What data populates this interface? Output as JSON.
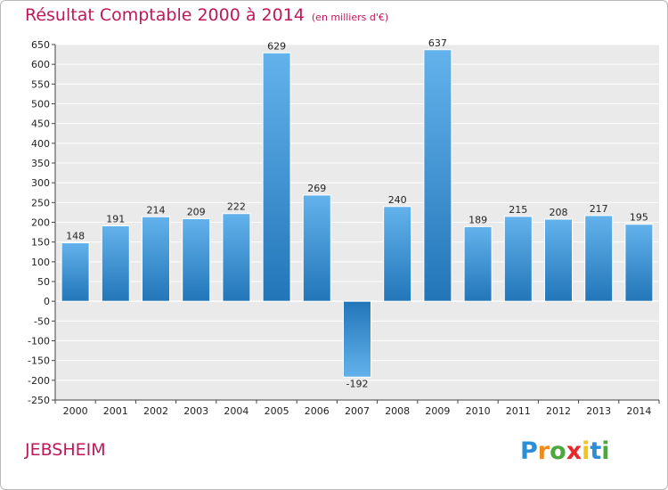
{
  "title": "Résultat Comptable 2000 à 2014",
  "subtitle": "(en milliers d'€)",
  "commune": "JEBSHEIM",
  "brand": "Proxiti",
  "colors": {
    "title": "#c0175a",
    "bar_light": "#63b2ec",
    "bar_dark": "#2276b8",
    "plot_bg": "#eaeaea",
    "grid": "#ffffff"
  },
  "chart_data": {
    "type": "bar",
    "title": "Résultat Comptable 2000 à 2014",
    "subtitle": "(en milliers d'€)",
    "categories": [
      "2000",
      "2001",
      "2002",
      "2003",
      "2004",
      "2005",
      "2006",
      "2007",
      "2008",
      "2009",
      "2010",
      "2011",
      "2012",
      "2013",
      "2014"
    ],
    "values": [
      148,
      191,
      214,
      209,
      222,
      629,
      269,
      -192,
      240,
      637,
      189,
      215,
      208,
      217,
      195
    ],
    "ylim": [
      -250,
      650
    ],
    "yticks": [
      650,
      600,
      550,
      500,
      450,
      400,
      350,
      300,
      250,
      200,
      150,
      100,
      50,
      0,
      -50,
      -100,
      -150,
      -200,
      -250
    ],
    "grid": true,
    "xlabel": "",
    "ylabel": ""
  }
}
